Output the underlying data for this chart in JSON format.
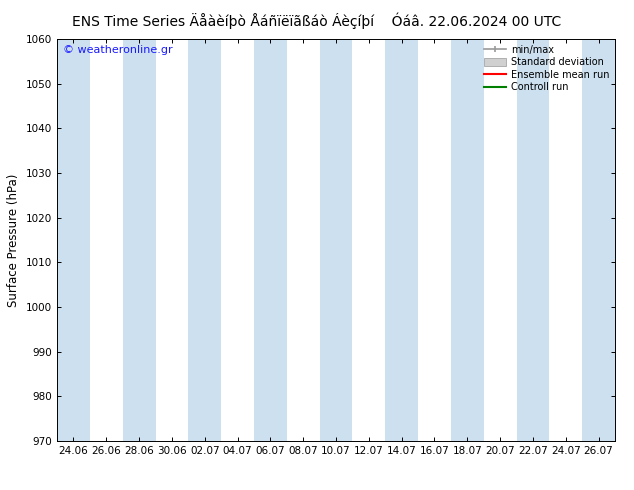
{
  "title_left": "ENS Time Series Äåàèíþò Åáñïëïãßáò Áèçíþí",
  "title_right": "Óáâ. 22.06.2024 00 UTC",
  "ylabel": "Surface Pressure (hPa)",
  "ylim": [
    970,
    1060
  ],
  "yticks": [
    970,
    980,
    990,
    1000,
    1010,
    1020,
    1030,
    1040,
    1050,
    1060
  ],
  "xtick_labels": [
    "24.06",
    "26.06",
    "28.06",
    "30.06",
    "02.07",
    "04.07",
    "06.07",
    "08.07",
    "10.07",
    "12.07",
    "14.07",
    "16.07",
    "18.07",
    "20.07",
    "22.07",
    "24.07",
    "26.07"
  ],
  "watermark": "© weatheronline.gr",
  "watermark_color": "#1a1aff",
  "background_color": "#ffffff",
  "plot_bg_color": "#ffffff",
  "band_color": "#cce0f0",
  "legend_labels": [
    "min/max",
    "Standard deviation",
    "Ensemble mean run",
    "Controll run"
  ],
  "legend_colors_line": [
    "#999999",
    "#cccccc",
    "#ff0000",
    "#008000"
  ],
  "title_fontsize": 10,
  "tick_fontsize": 7.5,
  "ylabel_fontsize": 8.5,
  "band_positions": [
    0,
    2,
    4,
    6,
    8,
    10,
    12,
    14,
    16
  ]
}
